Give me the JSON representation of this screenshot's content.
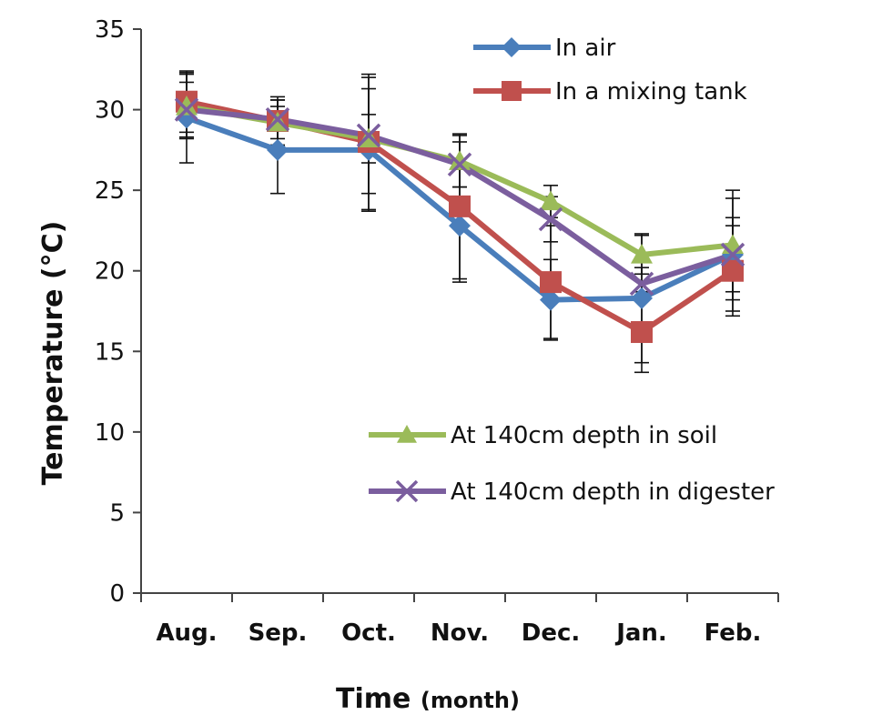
{
  "chart_data": {
    "type": "line",
    "title": "",
    "xlabel": "Time",
    "xlabel_unit": "(month)",
    "ylabel": "Temperature (°C)",
    "ylim": [
      0,
      35
    ],
    "yticks": [
      0,
      5,
      10,
      15,
      20,
      25,
      30,
      35
    ],
    "categories": [
      "Aug.",
      "Sep.",
      "Oct.",
      "Nov.",
      "Dec.",
      "Jan.",
      "Feb."
    ],
    "grid": false,
    "error_bars": true,
    "series": [
      {
        "name": "In air",
        "color": "#4a7ebb",
        "marker": "diamond",
        "values": [
          29.5,
          27.5,
          27.5,
          22.8,
          18.2,
          18.3,
          21.0
        ],
        "errors": [
          2.8,
          2.7,
          3.8,
          3.5,
          2.5,
          4.0,
          3.5
        ]
      },
      {
        "name": "In a mixing tank",
        "color": "#c0504d",
        "marker": "square",
        "values": [
          30.5,
          29.3,
          28.0,
          24.0,
          19.3,
          16.2,
          20.0
        ],
        "errors": [
          1.9,
          1.5,
          4.2,
          4.5,
          3.5,
          2.5,
          2.8
        ]
      },
      {
        "name": "At 140cm depth in soil",
        "color": "#9bbb59",
        "marker": "triangle",
        "values": [
          30.2,
          29.2,
          28.2,
          26.8,
          24.3,
          21.0,
          21.6
        ],
        "errors": [
          2.0,
          1.4,
          1.5,
          1.6,
          1.0,
          1.2,
          3.4
        ]
      },
      {
        "name": "At 140cm depth in digester",
        "color": "#7b5e9e",
        "marker": "x",
        "values": [
          30.0,
          29.4,
          28.4,
          26.6,
          23.2,
          19.2,
          21.0
        ],
        "errors": [
          1.7,
          1.2,
          3.6,
          1.4,
          1.4,
          1.0,
          2.3
        ]
      }
    ],
    "legend": {
      "groups": [
        {
          "placement": "top-right",
          "series": [
            0,
            1
          ]
        },
        {
          "placement": "middle-right",
          "series": [
            2,
            3
          ]
        }
      ]
    }
  }
}
